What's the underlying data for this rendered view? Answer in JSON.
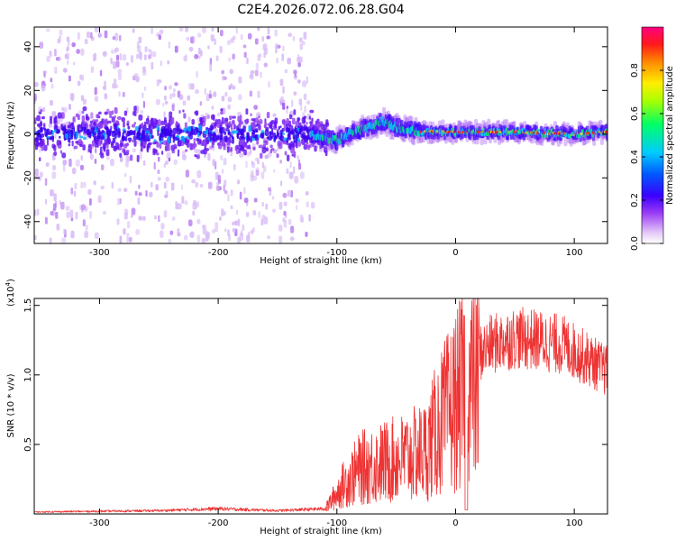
{
  "title": "C2E4.2026.072.06.28.G04",
  "chart_data": [
    {
      "type": "heatmap",
      "name": "spectrogram",
      "xlabel": "Height of straight line (km)",
      "ylabel": "Frequency (Hz)",
      "xlim": [
        -355,
        128
      ],
      "ylim": [
        -50,
        49
      ],
      "xticks": [
        -300,
        -200,
        -100,
        0,
        100
      ],
      "xtick_labels": [
        "-300",
        "-200",
        "-100",
        "0",
        "100"
      ],
      "yticks": [
        -40,
        -20,
        0,
        20,
        40
      ],
      "ytick_labels": [
        "-40",
        "-20",
        "0",
        "20",
        "40"
      ],
      "colorbar": {
        "label": "Normalized spectral amplitude",
        "range": [
          0,
          1
        ],
        "ticks": [
          0.0,
          0.2,
          0.4,
          0.6,
          0.8
        ],
        "tick_labels": [
          "0.0",
          "0.2",
          "0.4",
          "0.6",
          "0.8"
        ]
      },
      "noise_region": {
        "x": [
          -355,
          -120
        ],
        "freq_spread_hz": 49
      },
      "signal_track": [
        {
          "x": -120,
          "f": 0
        },
        {
          "x": -110,
          "f": -2
        },
        {
          "x": -100,
          "f": -3
        },
        {
          "x": -90,
          "f": 0
        },
        {
          "x": -80,
          "f": 2
        },
        {
          "x": -70,
          "f": 4
        },
        {
          "x": -60,
          "f": 6
        },
        {
          "x": -50,
          "f": 3
        },
        {
          "x": -40,
          "f": 2
        },
        {
          "x": -30,
          "f": 1
        },
        {
          "x": -20,
          "f": 1
        },
        {
          "x": 0,
          "f": 1
        },
        {
          "x": 50,
          "f": 1
        },
        {
          "x": 100,
          "f": 0
        },
        {
          "x": 128,
          "f": 1
        }
      ]
    },
    {
      "type": "line",
      "name": "snr",
      "xlabel": "Height of straight line (km)",
      "ylabel": "SNR (10 * v/v)",
      "scale_label": "(x10",
      "scale_exponent": "4",
      "scale_close": ")",
      "xlim": [
        -355,
        128
      ],
      "ylim": [
        0,
        15500
      ],
      "xticks": [
        -300,
        -200,
        -100,
        0,
        100
      ],
      "xtick_labels": [
        "-300",
        "-200",
        "-100",
        "0",
        "100"
      ],
      "yticks": [
        5000,
        10000,
        15000
      ],
      "ytick_labels": [
        "0.5",
        "1.0",
        "1.5"
      ],
      "color": "#ee3333",
      "envelope": [
        {
          "x": -355,
          "y": 150
        },
        {
          "x": -250,
          "y": 250
        },
        {
          "x": -200,
          "y": 400
        },
        {
          "x": -150,
          "y": 250
        },
        {
          "x": -110,
          "y": 400
        },
        {
          "x": -95,
          "y": 2500
        },
        {
          "x": -80,
          "y": 4000
        },
        {
          "x": -60,
          "y": 4500
        },
        {
          "x": -40,
          "y": 5000
        },
        {
          "x": -25,
          "y": 5500
        },
        {
          "x": -15,
          "y": 7500
        },
        {
          "x": -5,
          "y": 9000
        },
        {
          "x": 5,
          "y": 10500
        },
        {
          "x": 15,
          "y": 11500
        },
        {
          "x": 30,
          "y": 12500
        },
        {
          "x": 50,
          "y": 13000
        },
        {
          "x": 70,
          "y": 12800
        },
        {
          "x": 90,
          "y": 12500
        },
        {
          "x": 110,
          "y": 11500
        },
        {
          "x": 128,
          "y": 10500
        }
      ],
      "dropout_x": 9
    }
  ]
}
